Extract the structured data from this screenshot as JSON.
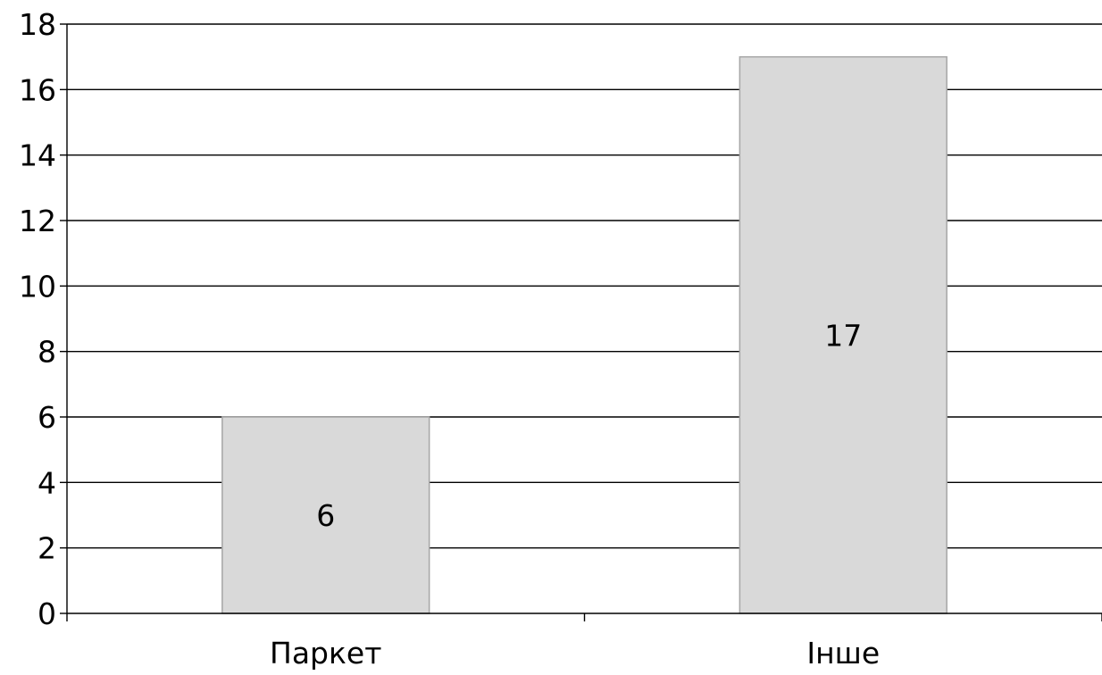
{
  "chart_data": {
    "type": "bar",
    "categories": [
      "Паркет",
      "Інше"
    ],
    "values": [
      6,
      17
    ],
    "title": "",
    "xlabel": "",
    "ylabel": "",
    "ylim": [
      0,
      18
    ],
    "y_ticks": [
      0,
      2,
      4,
      6,
      8,
      10,
      12,
      14,
      16,
      18
    ],
    "data_labels": [
      "6",
      "17"
    ],
    "grid": true,
    "legend": "none",
    "colors": {
      "bar_fill": "#d9d9d9",
      "bar_stroke": "#a6a6a6",
      "grid": "#000000",
      "text": "#000000"
    }
  }
}
